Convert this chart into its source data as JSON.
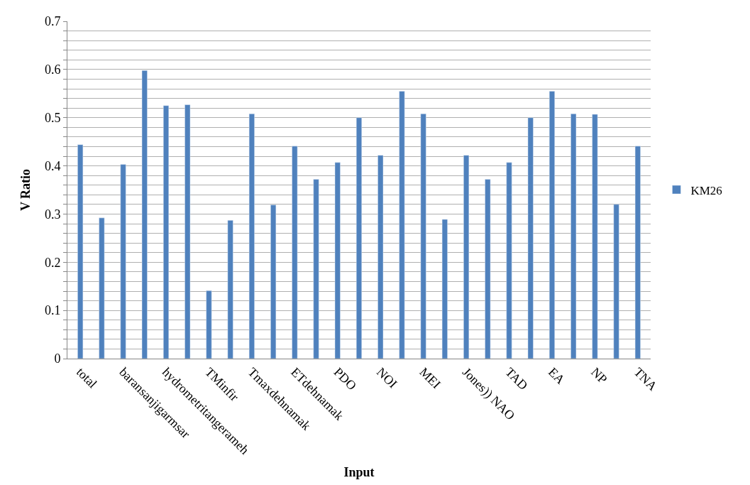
{
  "chart_data": {
    "type": "bar",
    "xlabel": "Input",
    "ylabel": "V Ratio",
    "categories": [
      "total",
      null,
      "baransanjigarmsar",
      null,
      "hydrometritangerameh",
      null,
      "TMinfir",
      null,
      "Tmaxdehnamak",
      null,
      "ETdehnamak",
      null,
      "PDO",
      null,
      "NOI",
      null,
      "MEI",
      null,
      "Jones)) NAO",
      null,
      "TAD",
      null,
      "EA",
      null,
      "NP",
      null,
      "TNA"
    ],
    "series": [
      {
        "name": "KM26",
        "color": "#4f81bd",
        "values": [
          0.444,
          0.292,
          0.403,
          0.598,
          0.525,
          0.527,
          0.141,
          0.287,
          0.508,
          0.319,
          0.441,
          0.372,
          0.407,
          0.5,
          0.422,
          0.555,
          0.508,
          0.289,
          0.422,
          0.372,
          0.407,
          0.5,
          0.555,
          0.508,
          0.507,
          0.32,
          0.441
        ]
      }
    ],
    "ylim": [
      0,
      0.7
    ],
    "yticks": [
      0,
      {
        "value": 0.02,
        "label": null
      },
      {
        "value": 0.04,
        "label": null
      },
      {
        "value": 0.06,
        "label": null
      },
      {
        "value": 0.08,
        "label": null
      },
      0.1,
      {
        "value": 0.12,
        "label": null
      },
      {
        "value": 0.14,
        "label": null
      },
      {
        "value": 0.16,
        "label": null
      },
      {
        "value": 0.18,
        "label": null
      },
      0.2,
      {
        "value": 0.22,
        "label": null
      },
      {
        "value": 0.24,
        "label": null
      },
      {
        "value": 0.26,
        "label": null
      },
      {
        "value": 0.28,
        "label": null
      },
      0.3,
      {
        "value": 0.32,
        "label": null
      },
      {
        "value": 0.34,
        "label": null
      },
      {
        "value": 0.36,
        "label": null
      },
      {
        "value": 0.38,
        "label": null
      },
      0.4,
      {
        "value": 0.42,
        "label": null
      },
      {
        "value": 0.44,
        "label": null
      },
      {
        "value": 0.46,
        "label": null
      },
      {
        "value": 0.48,
        "label": null
      },
      0.5,
      {
        "value": 0.52,
        "label": null
      },
      {
        "value": 0.54,
        "label": null
      },
      {
        "value": 0.56,
        "label": null
      },
      {
        "value": 0.58,
        "label": null
      },
      0.6,
      {
        "value": 0.62,
        "label": null
      },
      {
        "value": 0.64,
        "label": null
      },
      {
        "value": 0.66,
        "label": null
      },
      {
        "value": 0.68,
        "label": null
      },
      0.7
    ],
    "grid": "y",
    "legend": "right"
  }
}
